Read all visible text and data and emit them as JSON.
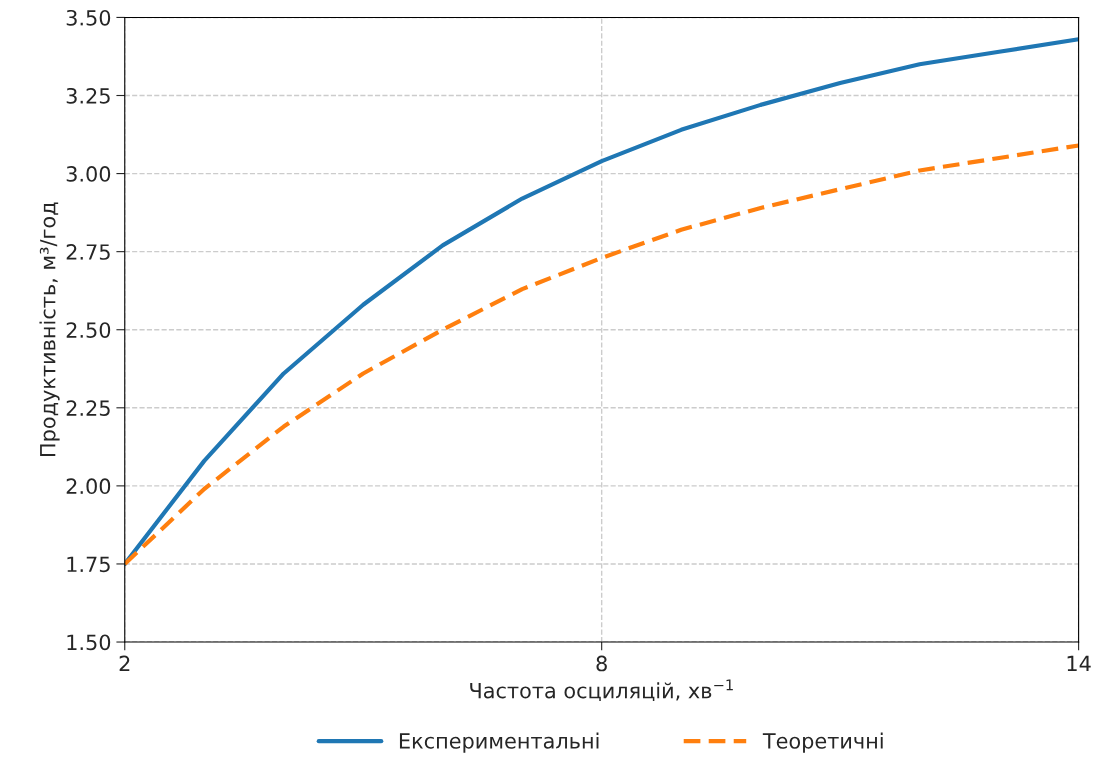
{
  "chart_data": {
    "type": "line",
    "xlabel": "Частота осциляцій, хв$^{−1}$",
    "ylabel": "Продуктивність, м³/год",
    "x": [
      2,
      3,
      4,
      5,
      6,
      7,
      8,
      9,
      10,
      11,
      12,
      13,
      14
    ],
    "series": [
      {
        "name": "Експериментальні",
        "color": "#1f77b4",
        "line_style": "solid",
        "values": [
          1.75,
          2.08,
          2.36,
          2.58,
          2.77,
          2.92,
          3.04,
          3.14,
          3.22,
          3.29,
          3.35,
          3.39,
          3.43
        ]
      },
      {
        "name": "Теоретичні",
        "color": "#ff7f0e",
        "line_style": "dashed",
        "values": [
          1.75,
          1.99,
          2.19,
          2.36,
          2.5,
          2.63,
          2.73,
          2.82,
          2.89,
          2.95,
          3.01,
          3.05,
          3.09
        ]
      }
    ],
    "xlim": [
      2,
      14
    ],
    "xticks": [
      2,
      8,
      14
    ],
    "ylim": [
      1.5,
      3.5
    ],
    "yticks": [
      {
        "value": 1.5,
        "label": "1.50"
      },
      {
        "value": 1.75,
        "label": "1.75"
      },
      {
        "value": 2.0,
        "label": "2.00"
      },
      {
        "value": 2.25,
        "label": "2.25"
      },
      {
        "value": 2.5,
        "label": "2.50"
      },
      {
        "value": 2.75,
        "label": "2.75"
      },
      {
        "value": 3.0,
        "label": "3.00"
      },
      {
        "value": 3.25,
        "label": "3.25"
      },
      {
        "value": 3.5,
        "label": "3.50"
      }
    ],
    "grid": true,
    "legend": "bottom"
  }
}
